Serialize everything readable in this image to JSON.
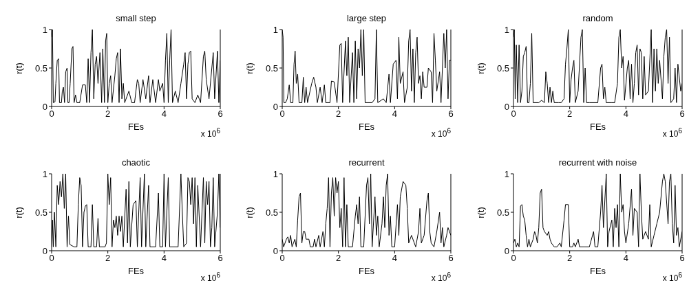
{
  "chart_data": [
    {
      "type": "line",
      "title": "small step",
      "xlabel": "FEs",
      "ylabel": "r(t)",
      "annotations": [
        "x 10$^{6}$"
      ],
      "xlim": [
        0,
        6
      ],
      "xticks": [
        0,
        2,
        4,
        6
      ],
      "ylim": [
        0,
        1
      ],
      "yticks": [
        0,
        0.5,
        1
      ],
      "x": [
        0,
        0.03,
        0.06,
        0.12,
        0.15,
        0.2,
        0.25,
        0.28,
        0.35,
        0.38,
        0.42,
        0.46,
        0.5,
        0.55,
        0.58,
        0.62,
        0.66,
        0.72,
        0.76,
        0.8,
        0.85,
        0.9,
        1.0,
        1.1,
        1.2,
        1.25,
        1.3,
        1.35,
        1.4,
        1.45,
        1.5,
        1.55,
        1.6,
        1.65,
        1.72,
        1.78,
        1.82,
        1.88,
        1.92,
        1.96,
        2.0,
        2.05,
        2.1,
        2.15,
        2.25,
        2.3,
        2.35,
        2.4,
        2.45,
        2.5,
        2.55,
        2.6,
        2.75,
        2.85,
        2.95,
        3.05,
        3.1,
        3.15,
        3.25,
        3.35,
        3.45,
        3.5,
        3.6,
        3.7,
        3.8,
        3.85,
        3.95,
        4.0,
        4.05,
        4.1,
        4.15,
        4.2,
        4.25,
        4.3,
        4.4,
        4.5,
        4.6,
        4.7,
        4.75,
        4.8,
        4.85,
        4.9,
        4.95,
        5.0,
        5.1,
        5.2,
        5.3,
        5.4,
        5.45,
        5.5,
        5.6,
        5.7,
        5.75,
        5.8,
        5.9,
        5.95,
        6
      ],
      "series": [
        {
          "color": "#000000",
          "values": [
            0.9,
            1,
            0.05,
            0.06,
            0.3,
            0.6,
            0.62,
            0.05,
            0.05,
            0.2,
            0.25,
            0.05,
            0.45,
            0.5,
            0.05,
            0.05,
            0.3,
            0.75,
            0.78,
            0.05,
            0.15,
            0.05,
            0.05,
            0.28,
            0.28,
            0.05,
            0.62,
            0.05,
            0.7,
            1,
            0.1,
            0.55,
            0.65,
            0.3,
            0.7,
            0.05,
            0.75,
            0.05,
            0.85,
            0.95,
            0.05,
            0.3,
            0.4,
            0.05,
            0.4,
            0.62,
            0.7,
            0.05,
            0.75,
            0.1,
            0.3,
            0.05,
            0.2,
            0.05,
            0.05,
            0.35,
            0.3,
            0.05,
            0.35,
            0.1,
            0.4,
            0.05,
            0.35,
            0.05,
            0.35,
            0.2,
            0.3,
            0.05,
            0.6,
            0.95,
            0.05,
            0.6,
            1,
            0.05,
            0.2,
            0.05,
            0.3,
            0.55,
            0.7,
            0.1,
            0.55,
            0.7,
            0.72,
            0.1,
            0.05,
            0.15,
            0.05,
            0.65,
            0.72,
            0.35,
            0.1,
            0.5,
            0.7,
            0.1,
            0.72,
            0.05,
            0.6
          ]
        }
      ]
    },
    {
      "type": "line",
      "title": "large step",
      "xlabel": "FEs",
      "ylabel": "r(t)",
      "annotations": [
        "x 10$^{6}$"
      ],
      "xlim": [
        0,
        6
      ],
      "xticks": [
        0,
        2,
        4,
        6
      ],
      "ylim": [
        0,
        1
      ],
      "yticks": [
        0,
        0.5,
        1
      ],
      "x": [
        0,
        0.03,
        0.06,
        0.12,
        0.18,
        0.25,
        0.3,
        0.38,
        0.42,
        0.46,
        0.5,
        0.55,
        0.6,
        0.7,
        0.75,
        0.8,
        0.85,
        0.9,
        1.05,
        1.12,
        1.2,
        1.25,
        1.35,
        1.42,
        1.5,
        1.55,
        1.7,
        1.75,
        1.85,
        1.95,
        2.05,
        2.1,
        2.15,
        2.25,
        2.3,
        2.35,
        2.4,
        2.5,
        2.55,
        2.6,
        2.65,
        2.7,
        2.75,
        2.8,
        2.85,
        2.9,
        2.95,
        3.2,
        3.3,
        3.35,
        3.4,
        3.6,
        3.7,
        3.8,
        3.85,
        3.95,
        4.05,
        4.1,
        4.15,
        4.2,
        4.3,
        4.35,
        4.45,
        4.5,
        4.55,
        4.6,
        4.65,
        4.7,
        4.75,
        4.8,
        4.85,
        4.9,
        4.95,
        5.0,
        5.05,
        5.15,
        5.2,
        5.3,
        5.35,
        5.4,
        5.45,
        5.5,
        5.6,
        5.65,
        5.75,
        5.8,
        5.85,
        5.9,
        5.95,
        6
      ],
      "series": [
        {
          "color": "#000000",
          "values": [
            1,
            0.9,
            0.05,
            0.05,
            0.1,
            0.28,
            0.05,
            0.05,
            0.55,
            0.72,
            0.3,
            0.42,
            0.05,
            0.05,
            0.38,
            0.05,
            0.25,
            0.05,
            0.3,
            0.38,
            0.25,
            0.05,
            0.25,
            0.05,
            0.28,
            0.05,
            0.05,
            0.33,
            0.32,
            0.05,
            0.8,
            0.82,
            0.05,
            0.85,
            0.4,
            0.9,
            0.05,
            0.7,
            0.05,
            0.85,
            0.1,
            0.75,
            0.5,
            1,
            0.4,
            1,
            0.05,
            0.05,
            0.1,
            1,
            0.05,
            0.1,
            0.05,
            0.42,
            0.05,
            0.55,
            0.6,
            0.1,
            0.9,
            0.3,
            0.45,
            0.05,
            0.25,
            0.85,
            1,
            0.2,
            0.75,
            0.05,
            0.7,
            0.9,
            0.3,
            0.4,
            0.1,
            0.45,
            0.25,
            0.25,
            0.5,
            0.45,
            0.05,
            0.95,
            0.6,
            0.2,
            0.45,
            0.05,
            0.95,
            0.5,
            1,
            0.1,
            0.6,
            0.6
          ]
        }
      ]
    },
    {
      "type": "line",
      "title": "random",
      "xlabel": "FEs",
      "ylabel": "r(t)",
      "annotations": [
        "x 10$^{6}$"
      ],
      "xlim": [
        0,
        6
      ],
      "xticks": [
        0,
        2,
        4,
        6
      ],
      "ylim": [
        0,
        1
      ],
      "yticks": [
        0,
        0.5,
        1
      ],
      "x": [
        0,
        0.03,
        0.06,
        0.1,
        0.15,
        0.2,
        0.25,
        0.3,
        0.35,
        0.4,
        0.45,
        0.5,
        0.55,
        0.6,
        0.65,
        0.7,
        0.9,
        1.0,
        1.1,
        1.15,
        1.2,
        1.25,
        1.3,
        1.35,
        1.4,
        1.45,
        1.6,
        1.7,
        1.8,
        1.85,
        1.9,
        1.95,
        2.0,
        2.05,
        2.1,
        2.15,
        2.2,
        2.3,
        2.4,
        2.45,
        2.5,
        2.55,
        2.6,
        2.7,
        3.0,
        3.1,
        3.15,
        3.2,
        3.25,
        3.3,
        3.5,
        3.6,
        3.7,
        3.75,
        3.8,
        3.85,
        3.9,
        3.95,
        4.05,
        4.1,
        4.15,
        4.2,
        4.25,
        4.3,
        4.35,
        4.4,
        4.45,
        4.5,
        4.55,
        4.6,
        4.65,
        4.7,
        4.8,
        4.9,
        4.95,
        5.0,
        5.05,
        5.1,
        5.15,
        5.2,
        5.3,
        5.35,
        5.4,
        5.45,
        5.5,
        5.55,
        5.6,
        5.7,
        5.75,
        5.8,
        5.85,
        5.95,
        6
      ],
      "series": [
        {
          "color": "#000000",
          "values": [
            0.9,
            1,
            0.1,
            0.8,
            0.05,
            0.8,
            0.05,
            0.2,
            0.65,
            0.7,
            0.78,
            0.05,
            0.05,
            0.3,
            0.95,
            0.05,
            0.05,
            0.08,
            0.05,
            0.45,
            0.3,
            0.05,
            0.25,
            0.05,
            0.2,
            0.05,
            0.05,
            0.05,
            0.1,
            0.55,
            0.75,
            1,
            0.05,
            0.35,
            0.5,
            0.6,
            0.05,
            0.2,
            0.9,
            1,
            0.05,
            0.5,
            0.05,
            0.05,
            0.05,
            0.5,
            0.55,
            0.1,
            0.25,
            0.05,
            0.05,
            0.05,
            0.3,
            0.9,
            1,
            0.5,
            0.65,
            0.08,
            0.5,
            0.6,
            0.1,
            0.55,
            0.05,
            0.3,
            0.7,
            0.8,
            0.15,
            0.75,
            0.7,
            0.1,
            0.65,
            0.15,
            0.2,
            1,
            0.05,
            0.75,
            0.2,
            0.75,
            0.3,
            0.6,
            0.1,
            0.65,
            0.9,
            1,
            0.3,
            0.9,
            0.05,
            0.1,
            0.5,
            0.05,
            0.55,
            0.2,
            0.3
          ]
        }
      ]
    },
    {
      "type": "line",
      "title": "chaotic",
      "xlabel": "FEs",
      "ylabel": "r(t)",
      "annotations": [
        "x 10$^{6}$"
      ],
      "xlim": [
        0,
        6
      ],
      "xticks": [
        0,
        2,
        4,
        6
      ],
      "ylim": [
        0,
        1
      ],
      "yticks": [
        0,
        0.5,
        1
      ],
      "x": [
        0,
        0.03,
        0.06,
        0.1,
        0.15,
        0.2,
        0.25,
        0.3,
        0.35,
        0.4,
        0.45,
        0.5,
        0.55,
        0.6,
        0.65,
        0.8,
        0.9,
        0.95,
        1.0,
        1.05,
        1.1,
        1.15,
        1.2,
        1.25,
        1.3,
        1.4,
        1.45,
        1.5,
        1.6,
        1.65,
        1.7,
        1.9,
        1.95,
        2.0,
        2.05,
        2.1,
        2.15,
        2.2,
        2.25,
        2.3,
        2.35,
        2.4,
        2.45,
        2.5,
        2.55,
        2.65,
        2.7,
        2.75,
        2.8,
        2.9,
        3.0,
        3.05,
        3.15,
        3.2,
        3.3,
        3.35,
        3.45,
        3.5,
        3.7,
        3.8,
        3.85,
        3.95,
        4.0,
        4.05,
        4.15,
        4.2,
        4.5,
        4.6,
        4.65,
        4.7,
        4.8,
        4.85,
        4.9,
        4.95,
        5.0,
        5.05,
        5.1,
        5.15,
        5.2,
        5.3,
        5.4,
        5.45,
        5.5,
        5.55,
        5.6,
        5.65,
        5.7,
        5.75,
        5.8,
        5.9,
        5.95,
        6
      ],
      "series": [
        {
          "color": "#000000",
          "values": [
            0.05,
            0.4,
            0.05,
            0.5,
            0.05,
            0.85,
            0.6,
            0.9,
            0.7,
            1,
            0.55,
            1,
            0.05,
            0.45,
            0.08,
            0.05,
            0.05,
            0.6,
            0.95,
            0.85,
            0.05,
            0.5,
            0.58,
            0.6,
            0.05,
            0.05,
            0.6,
            0.05,
            0.05,
            0.42,
            0.05,
            0.05,
            0.1,
            1,
            0.6,
            0.95,
            0.05,
            0.4,
            0.3,
            0.45,
            0.2,
            0.45,
            0.25,
            0.45,
            0.05,
            0.8,
            0.1,
            0.9,
            0.05,
            0.6,
            0.65,
            0.05,
            0.95,
            0.05,
            1,
            0.05,
            0.85,
            0.05,
            0.05,
            0.75,
            0.05,
            0.05,
            1,
            0.05,
            0.95,
            0.05,
            0.05,
            1,
            0.5,
            0.05,
            0.1,
            0.95,
            0.9,
            0.6,
            0.95,
            0.35,
            0.95,
            0.05,
            0.85,
            0.05,
            0.95,
            0.1,
            0.9,
            0.6,
            0.9,
            0.05,
            0.3,
            0.95,
            0.05,
            0.5,
            1,
            0.3
          ]
        }
      ]
    },
    {
      "type": "line",
      "title": "recurrent",
      "xlabel": "FEs",
      "ylabel": "r(t)",
      "annotations": [
        "x 10$^{6}$"
      ],
      "xlim": [
        0,
        6
      ],
      "xticks": [
        0,
        2,
        4,
        6
      ],
      "ylim": [
        0,
        1
      ],
      "yticks": [
        0,
        0.5,
        1
      ],
      "x": [
        0,
        0.05,
        0.1,
        0.15,
        0.2,
        0.25,
        0.3,
        0.35,
        0.4,
        0.45,
        0.5,
        0.55,
        0.6,
        0.65,
        0.7,
        0.75,
        0.8,
        0.85,
        0.95,
        1.0,
        1.1,
        1.15,
        1.2,
        1.3,
        1.35,
        1.45,
        1.5,
        1.55,
        1.6,
        1.65,
        1.7,
        1.75,
        1.8,
        1.85,
        1.9,
        1.95,
        2.0,
        2.05,
        2.1,
        2.15,
        2.2,
        2.25,
        2.3,
        2.35,
        2.5,
        2.6,
        2.65,
        2.7,
        2.75,
        2.8,
        2.9,
        3.0,
        3.05,
        3.1,
        3.15,
        3.2,
        3.3,
        3.35,
        3.4,
        3.45,
        3.55,
        3.6,
        3.65,
        3.7,
        3.75,
        3.8,
        3.85,
        3.9,
        4.0,
        4.1,
        4.15,
        4.2,
        4.3,
        4.4,
        4.45,
        4.5,
        4.6,
        4.7,
        4.75,
        4.85,
        4.9,
        4.95,
        5.05,
        5.15,
        5.2,
        5.25,
        5.3,
        5.4,
        5.5,
        5.6,
        5.65,
        5.7,
        5.75,
        5.85,
        5.9,
        6
      ],
      "series": [
        {
          "color": "#000000",
          "values": [
            0.15,
            0.05,
            0.1,
            0.15,
            0.18,
            0.1,
            0.2,
            0.05,
            0.1,
            0.15,
            0.05,
            0.4,
            0.7,
            0.75,
            0.1,
            0.25,
            0.25,
            0.15,
            0.15,
            0.05,
            0.05,
            0.15,
            0.05,
            0.2,
            0.05,
            0.25,
            0.05,
            0.35,
            0.55,
            0.95,
            0.05,
            0.75,
            0.95,
            0.45,
            0.95,
            0.75,
            0.9,
            0.3,
            0.55,
            0.05,
            0.95,
            0.05,
            0.6,
            0.05,
            0.05,
            0.45,
            0.6,
            0.35,
            0.7,
            0.05,
            0.05,
            0.85,
            0.95,
            0.35,
            1,
            0.05,
            0.7,
            0.2,
            0.45,
            0.05,
            0.35,
            0.7,
            0.3,
            0.85,
            1,
            0.2,
            0.45,
            0.05,
            0.05,
            0.6,
            0.2,
            0.7,
            0.9,
            0.85,
            0.55,
            0.1,
            0.2,
            0.1,
            0.05,
            0.25,
            0.55,
            0.1,
            0.2,
            0.65,
            0.75,
            0.25,
            0.1,
            0.05,
            0.25,
            0.5,
            0.1,
            0.3,
            0.05,
            0.2,
            0.3,
            0.2
          ]
        }
      ]
    },
    {
      "type": "line",
      "title": "recurrent with noise",
      "xlabel": "FEs",
      "ylabel": "r(t)",
      "annotations": [
        "x 10$^{6}$"
      ],
      "xlim": [
        0,
        6
      ],
      "xticks": [
        0,
        2,
        4,
        6
      ],
      "ylim": [
        0,
        1
      ],
      "yticks": [
        0,
        0.5,
        1
      ],
      "x": [
        0,
        0.05,
        0.1,
        0.15,
        0.2,
        0.25,
        0.3,
        0.35,
        0.4,
        0.45,
        0.5,
        0.55,
        0.6,
        0.7,
        0.75,
        0.8,
        0.85,
        0.9,
        0.95,
        1.0,
        1.05,
        1.1,
        1.2,
        1.25,
        1.3,
        1.35,
        1.45,
        1.55,
        1.65,
        1.7,
        1.8,
        1.85,
        1.95,
        2.0,
        2.1,
        2.15,
        2.2,
        2.3,
        2.35,
        2.5,
        2.7,
        2.85,
        2.9,
        3.0,
        3.1,
        3.15,
        3.2,
        3.3,
        3.35,
        3.4,
        3.5,
        3.55,
        3.6,
        3.65,
        3.7,
        3.75,
        3.8,
        3.85,
        3.9,
        3.95,
        4.0,
        4.1,
        4.2,
        4.25,
        4.3,
        4.4,
        4.45,
        4.5,
        4.55,
        4.6,
        4.7,
        4.8,
        4.85,
        4.9,
        5.0,
        5.1,
        5.2,
        5.3,
        5.35,
        5.4,
        5.5,
        5.55,
        5.6,
        5.65,
        5.7,
        5.75,
        5.8,
        5.85,
        5.9,
        6
      ],
      "series": [
        {
          "color": "#000000",
          "values": [
            0.1,
            0.15,
            0.05,
            0.1,
            0.05,
            0.58,
            0.6,
            0.45,
            0.4,
            0.2,
            0.05,
            0.15,
            0.05,
            0.15,
            0.25,
            0.2,
            0.1,
            0.3,
            0.75,
            0.8,
            0.3,
            0.25,
            0.2,
            0.25,
            0.15,
            0.1,
            0.05,
            0.05,
            0.1,
            0.05,
            0.4,
            0.6,
            0.6,
            0.05,
            0.05,
            0.1,
            0.05,
            0.15,
            0.05,
            0.05,
            0.05,
            0.25,
            0.05,
            0.05,
            0.5,
            0.85,
            0.3,
            1,
            0.05,
            0.25,
            0.4,
            0.05,
            0.55,
            0.3,
            0.6,
            0.05,
            1,
            0.5,
            0.6,
            0.25,
            0.1,
            0.35,
            0.8,
            0.2,
            0.55,
            0.5,
            0.05,
            1,
            0.5,
            0.15,
            0.25,
            0.15,
            0.6,
            0.05,
            0.2,
            0.35,
            0.5,
            0.9,
            1,
            0.9,
            0.35,
            0.9,
            1,
            0.35,
            0.1,
            0.85,
            0.2,
            0.3,
            0.05,
            0.25
          ]
        }
      ]
    }
  ]
}
